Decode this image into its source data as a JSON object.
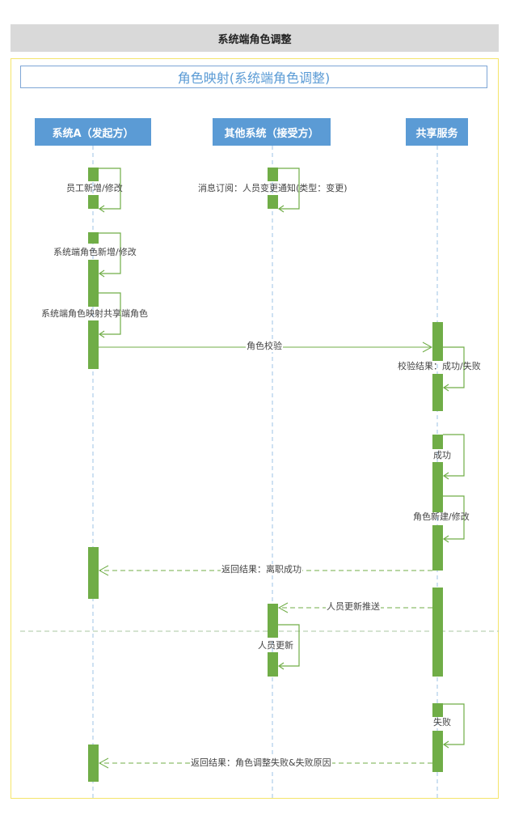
{
  "header": {
    "title": "系统端角色调整"
  },
  "diagram": {
    "title": "角色映射(系统端角色调整)",
    "participants": [
      "系统A（发起方）",
      "其他系统（接受方）",
      "共享服务"
    ],
    "self_messages": {
      "employee_add": "员工新增/修改",
      "notify_sub": "消息订阅：人员变更通知(类型：变更)",
      "role_add": "系统端角色新增/修改",
      "role_map": "系统端角色映射共享端角色",
      "verify_result": "校验结果：成功/失败",
      "success": "成功",
      "role_build": "角色新建/修改",
      "person_update": "人员更新",
      "fail": "失败"
    },
    "messages": {
      "role_verify": "角色校验",
      "return_success": "返回结果：离职成功",
      "person_push": "人员更新推送",
      "return_fail": "返回结果：角色调整失败&失败原因"
    },
    "colors": {
      "participant": "#5b9bd5",
      "activation": "#70ad47",
      "lifeline": "#9dc3e6",
      "divider": "#a9c7a0",
      "frame": "#f5e56a"
    }
  }
}
